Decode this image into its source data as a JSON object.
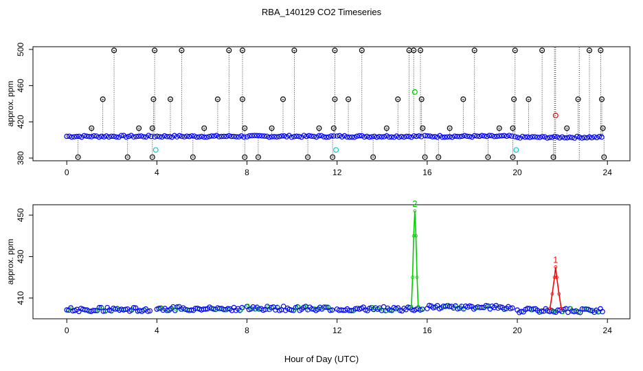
{
  "figure": {
    "title": "RBA_140129  CO2 Timeseries",
    "xlabel": "Hour of Day (UTC)"
  },
  "colors": {
    "base_points": "#0000ff",
    "outlier_points": "#000000",
    "green": "#00cc00",
    "red": "#ff0000",
    "cyan": "#00cccc"
  },
  "chart_data": [
    {
      "type": "scatter",
      "ylabel": "approx. ppm",
      "xlim": [
        -1.5,
        25
      ],
      "ylim": [
        377,
        503
      ],
      "xticks": [
        0,
        4,
        8,
        12,
        16,
        20,
        24
      ],
      "yticks": [
        380,
        420,
        460,
        500
      ],
      "ytick_labels": [
        "380",
        "420",
        "460",
        "500"
      ],
      "baseline": {
        "segments": [
          {
            "x": [
              0.0,
              3.8
            ],
            "y": 404
          },
          {
            "x": [
              3.9,
              7.9
            ],
            "y": 404
          },
          {
            "x": [
              8.0,
              11.9
            ],
            "y": 404
          },
          {
            "x": [
              12.0,
              15.8
            ],
            "y": 404
          },
          {
            "x": [
              15.9,
              19.8
            ],
            "y": 404
          },
          {
            "x": [
              19.9,
              23.8
            ],
            "y": 403
          }
        ]
      },
      "outliers": [
        {
          "x": 0.5,
          "y": 381
        },
        {
          "x": 1.1,
          "y": 413
        },
        {
          "x": 1.6,
          "y": 445
        },
        {
          "x": 2.1,
          "y": 499
        },
        {
          "x": 2.7,
          "y": 381
        },
        {
          "x": 3.2,
          "y": 413
        },
        {
          "x": 3.8,
          "y": 381
        },
        {
          "x": 3.8,
          "y": 413
        },
        {
          "x": 3.85,
          "y": 445
        },
        {
          "x": 3.9,
          "y": 499
        },
        {
          "x": 4.6,
          "y": 445
        },
        {
          "x": 5.1,
          "y": 499
        },
        {
          "x": 5.6,
          "y": 381
        },
        {
          "x": 6.1,
          "y": 413
        },
        {
          "x": 6.7,
          "y": 445
        },
        {
          "x": 7.2,
          "y": 499
        },
        {
          "x": 7.8,
          "y": 499
        },
        {
          "x": 7.8,
          "y": 445
        },
        {
          "x": 7.9,
          "y": 413
        },
        {
          "x": 7.9,
          "y": 381
        },
        {
          "x": 8.5,
          "y": 381
        },
        {
          "x": 9.1,
          "y": 413
        },
        {
          "x": 9.6,
          "y": 445
        },
        {
          "x": 10.1,
          "y": 499
        },
        {
          "x": 10.7,
          "y": 381
        },
        {
          "x": 11.2,
          "y": 413
        },
        {
          "x": 11.8,
          "y": 381
        },
        {
          "x": 11.85,
          "y": 413
        },
        {
          "x": 11.9,
          "y": 445
        },
        {
          "x": 11.9,
          "y": 499
        },
        {
          "x": 12.5,
          "y": 445
        },
        {
          "x": 13.1,
          "y": 499
        },
        {
          "x": 13.6,
          "y": 381
        },
        {
          "x": 14.2,
          "y": 413
        },
        {
          "x": 14.7,
          "y": 445
        },
        {
          "x": 15.2,
          "y": 499
        },
        {
          "x": 15.4,
          "y": 499
        },
        {
          "x": 15.7,
          "y": 499
        },
        {
          "x": 15.75,
          "y": 445
        },
        {
          "x": 15.8,
          "y": 413
        },
        {
          "x": 15.9,
          "y": 381
        },
        {
          "x": 16.5,
          "y": 381
        },
        {
          "x": 17.0,
          "y": 413
        },
        {
          "x": 17.6,
          "y": 445
        },
        {
          "x": 18.1,
          "y": 499
        },
        {
          "x": 18.7,
          "y": 381
        },
        {
          "x": 19.2,
          "y": 413
        },
        {
          "x": 19.8,
          "y": 381
        },
        {
          "x": 19.8,
          "y": 413
        },
        {
          "x": 19.85,
          "y": 445
        },
        {
          "x": 19.9,
          "y": 499
        },
        {
          "x": 20.5,
          "y": 445
        },
        {
          "x": 21.1,
          "y": 499
        },
        {
          "x": 21.6,
          "y": 381
        },
        {
          "x": 22.2,
          "y": 413
        },
        {
          "x": 22.7,
          "y": 445
        },
        {
          "x": 23.2,
          "y": 499
        },
        {
          "x": 23.7,
          "y": 499
        },
        {
          "x": 23.75,
          "y": 445
        },
        {
          "x": 23.8,
          "y": 413
        },
        {
          "x": 23.85,
          "y": 381
        }
      ],
      "tall_lines_x": [
        21.65,
        21.7,
        22.75
      ],
      "highlights": [
        {
          "x": 15.45,
          "y": 453,
          "color": "green"
        },
        {
          "x": 21.7,
          "y": 427,
          "color": "red"
        },
        {
          "x": 3.95,
          "y": 389,
          "color": "cyan"
        },
        {
          "x": 11.95,
          "y": 389,
          "color": "cyan"
        },
        {
          "x": 19.95,
          "y": 389,
          "color": "cyan"
        }
      ]
    },
    {
      "type": "line",
      "ylabel": "approx. ppm",
      "xlim": [
        -1.5,
        25
      ],
      "ylim": [
        400,
        455
      ],
      "xticks": [
        0,
        4,
        8,
        12,
        16,
        20,
        24
      ],
      "yticks": [
        410,
        430,
        450
      ],
      "ytick_labels": [
        "410",
        "430",
        "450"
      ],
      "baseline": {
        "segments": [
          {
            "x": [
              0.0,
              3.7
            ],
            "y": 404.5
          },
          {
            "x": [
              4.0,
              7.8
            ],
            "y": 405
          },
          {
            "x": [
              8.0,
              11.8
            ],
            "y": 405
          },
          {
            "x": [
              12.0,
              15.8
            ],
            "y": 404.8
          },
          {
            "x": [
              16.0,
              19.8
            ],
            "y": 405.5
          },
          {
            "x": [
              20.0,
              23.8
            ],
            "y": 404
          }
        ]
      },
      "series": [
        {
          "name": "2",
          "color": "green",
          "x": [
            15.3,
            15.35,
            15.4,
            15.45,
            15.5,
            15.55,
            15.6
          ],
          "y": [
            406,
            420,
            440,
            452,
            440,
            420,
            406
          ]
        },
        {
          "name": "1",
          "color": "red",
          "x": [
            21.45,
            21.55,
            21.65,
            21.7,
            21.75,
            21.85,
            21.95
          ],
          "y": [
            405,
            412,
            420,
            425,
            420,
            412,
            405
          ]
        }
      ]
    }
  ]
}
